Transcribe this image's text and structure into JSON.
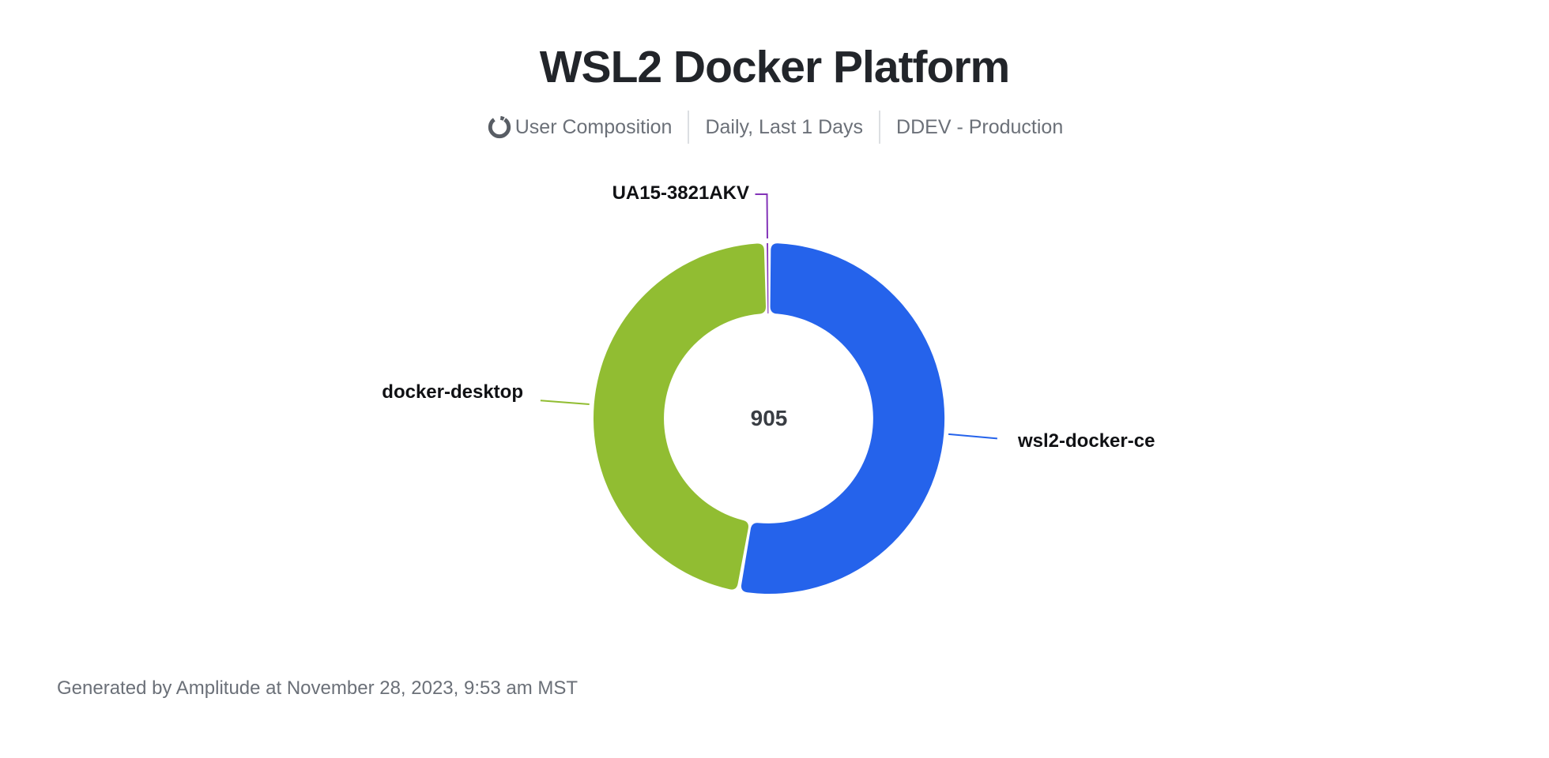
{
  "page": {
    "title": "WSL2 Docker Platform",
    "subtitle": {
      "icon": "donut-chart-icon",
      "metric_label": "User Composition",
      "date_range": "Daily, Last 1 Days",
      "project": "DDEV - Production"
    },
    "footer": "Generated by Amplitude at November 28, 2023, 9:53 am MST"
  },
  "chart_data": {
    "type": "pie",
    "donut": true,
    "title": "WSL2 Docker Platform",
    "subtitle": "User Composition | Daily, Last 1 Days | DDEV - Production",
    "total": 905,
    "total_label": "905",
    "legend_position": "outside-labels-with-leader-lines",
    "series": [
      {
        "name": "wsl2-docker-ce",
        "value": 478,
        "color": "#2563eb"
      },
      {
        "name": "docker-desktop",
        "value": 425,
        "color": "#91bd32"
      },
      {
        "name": "UA15-3821AKV",
        "value": 2,
        "color": "#8333b8"
      }
    ]
  }
}
